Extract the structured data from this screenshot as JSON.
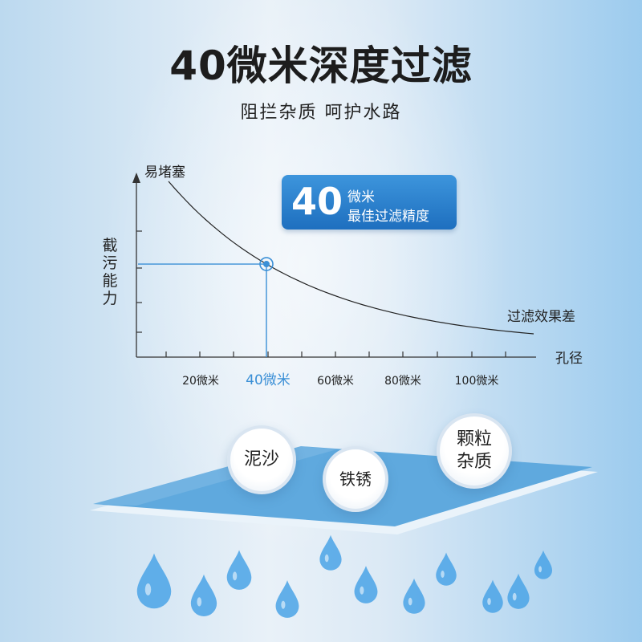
{
  "headline": "40微米深度过滤",
  "subline": "阻拦杂质 呵护水路",
  "badge": {
    "number": "40",
    "line1": "微米",
    "line2": "最佳过滤精度"
  },
  "chart_data": {
    "type": "line",
    "xlabel": "孔径",
    "ylabel": "截污能力",
    "x_tick_labels": [
      "20微米",
      "40微米",
      "60微米",
      "80微米",
      "100微米"
    ],
    "highlighted_tick": "40微米",
    "curve_start_label": "易堵塞",
    "curve_end_label": "过滤效果差",
    "highlight_point": "40微米",
    "colors": {
      "highlight": "#3a8fd6",
      "axis": "#333333"
    }
  },
  "bubbles": [
    {
      "label": "泥沙"
    },
    {
      "label": "铁锈"
    },
    {
      "label": "颗粒\n杂质"
    }
  ]
}
